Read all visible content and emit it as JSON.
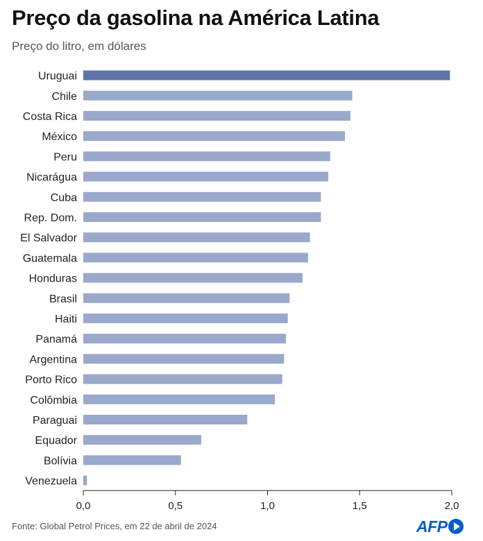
{
  "header": {
    "title": "Preço da gasolina na América Latina",
    "subtitle": "Preço do litro, em dólares"
  },
  "footer": {
    "source": "Fonte: Global Petrol Prices, em 22 de abril de 2024",
    "logo": "AFP"
  },
  "colors": {
    "bar": "#9aa8cb",
    "bar_highlight": "#5f74a8",
    "axis": "#222222",
    "text": "#222222"
  },
  "chart_data": {
    "type": "bar",
    "orientation": "horizontal",
    "categories": [
      "Uruguai",
      "Chile",
      "Costa Rica",
      "México",
      "Peru",
      "Nicarágua",
      "Cuba",
      "Rep. Dom.",
      "El Salvador",
      "Guatemala",
      "Honduras",
      "Brasil",
      "Haiti",
      "Panamá",
      "Argentina",
      "Porto Rico",
      "Colômbia",
      "Paraguai",
      "Equador",
      "Bolívia",
      "Venezuela"
    ],
    "values": [
      1.99,
      1.46,
      1.45,
      1.42,
      1.34,
      1.33,
      1.29,
      1.29,
      1.23,
      1.22,
      1.19,
      1.12,
      1.11,
      1.1,
      1.09,
      1.08,
      1.04,
      0.89,
      0.64,
      0.53,
      0.02
    ],
    "highlight": "Uruguai",
    "xlim": [
      0,
      2.0
    ],
    "xticks": [
      0,
      0.5,
      1.0,
      1.5,
      2.0
    ],
    "xtick_labels": [
      "0,0",
      "0,5",
      "1,0",
      "1,5",
      "2,0"
    ],
    "xlabel": "",
    "ylabel": "",
    "grid": false,
    "legend": "none"
  }
}
